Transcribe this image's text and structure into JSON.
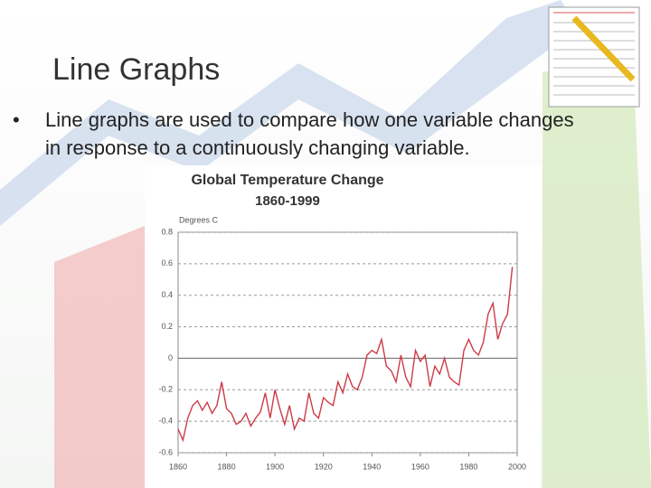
{
  "slide": {
    "title": "Line Graphs",
    "bullet": "Line graphs are used to compare how one variable changes in response to a continuously changing variable."
  },
  "chart_data": {
    "type": "line",
    "title": "Global Temperature Change",
    "subtitle": "1860-1999",
    "y_label": "Degrees C",
    "x": [
      1860,
      1862,
      1864,
      1866,
      1868,
      1870,
      1872,
      1874,
      1876,
      1878,
      1880,
      1882,
      1884,
      1886,
      1888,
      1890,
      1892,
      1894,
      1896,
      1898,
      1900,
      1902,
      1904,
      1906,
      1908,
      1910,
      1912,
      1914,
      1916,
      1918,
      1920,
      1922,
      1924,
      1926,
      1928,
      1930,
      1932,
      1934,
      1936,
      1938,
      1940,
      1942,
      1944,
      1946,
      1948,
      1950,
      1952,
      1954,
      1956,
      1958,
      1960,
      1962,
      1964,
      1966,
      1968,
      1970,
      1972,
      1974,
      1976,
      1978,
      1980,
      1982,
      1984,
      1986,
      1988,
      1990,
      1992,
      1994,
      1996,
      1998
    ],
    "values": [
      -0.45,
      -0.52,
      -0.38,
      -0.3,
      -0.27,
      -0.33,
      -0.28,
      -0.35,
      -0.3,
      -0.15,
      -0.32,
      -0.35,
      -0.42,
      -0.4,
      -0.35,
      -0.43,
      -0.38,
      -0.34,
      -0.22,
      -0.38,
      -0.2,
      -0.32,
      -0.42,
      -0.3,
      -0.45,
      -0.38,
      -0.4,
      -0.22,
      -0.35,
      -0.38,
      -0.25,
      -0.28,
      -0.3,
      -0.15,
      -0.22,
      -0.1,
      -0.18,
      -0.2,
      -0.12,
      0.02,
      0.05,
      0.03,
      0.12,
      -0.05,
      -0.08,
      -0.15,
      0.02,
      -0.12,
      -0.18,
      0.05,
      -0.02,
      0.02,
      -0.18,
      -0.05,
      -0.1,
      0.0,
      -0.12,
      -0.15,
      -0.17,
      0.05,
      0.12,
      0.05,
      0.02,
      0.1,
      0.28,
      0.35,
      0.12,
      0.22,
      0.28,
      0.58
    ],
    "color": "#cc3b46",
    "xlim": [
      1860,
      2000
    ],
    "xticks": [
      1860,
      1880,
      1900,
      1920,
      1940,
      1960,
      1980,
      2000
    ],
    "ylim": [
      -0.6,
      0.8
    ],
    "yticks": [
      0.8,
      0.6,
      0.4,
      0.2,
      0,
      -0.2,
      -0.4,
      -0.6
    ],
    "grid": true
  }
}
